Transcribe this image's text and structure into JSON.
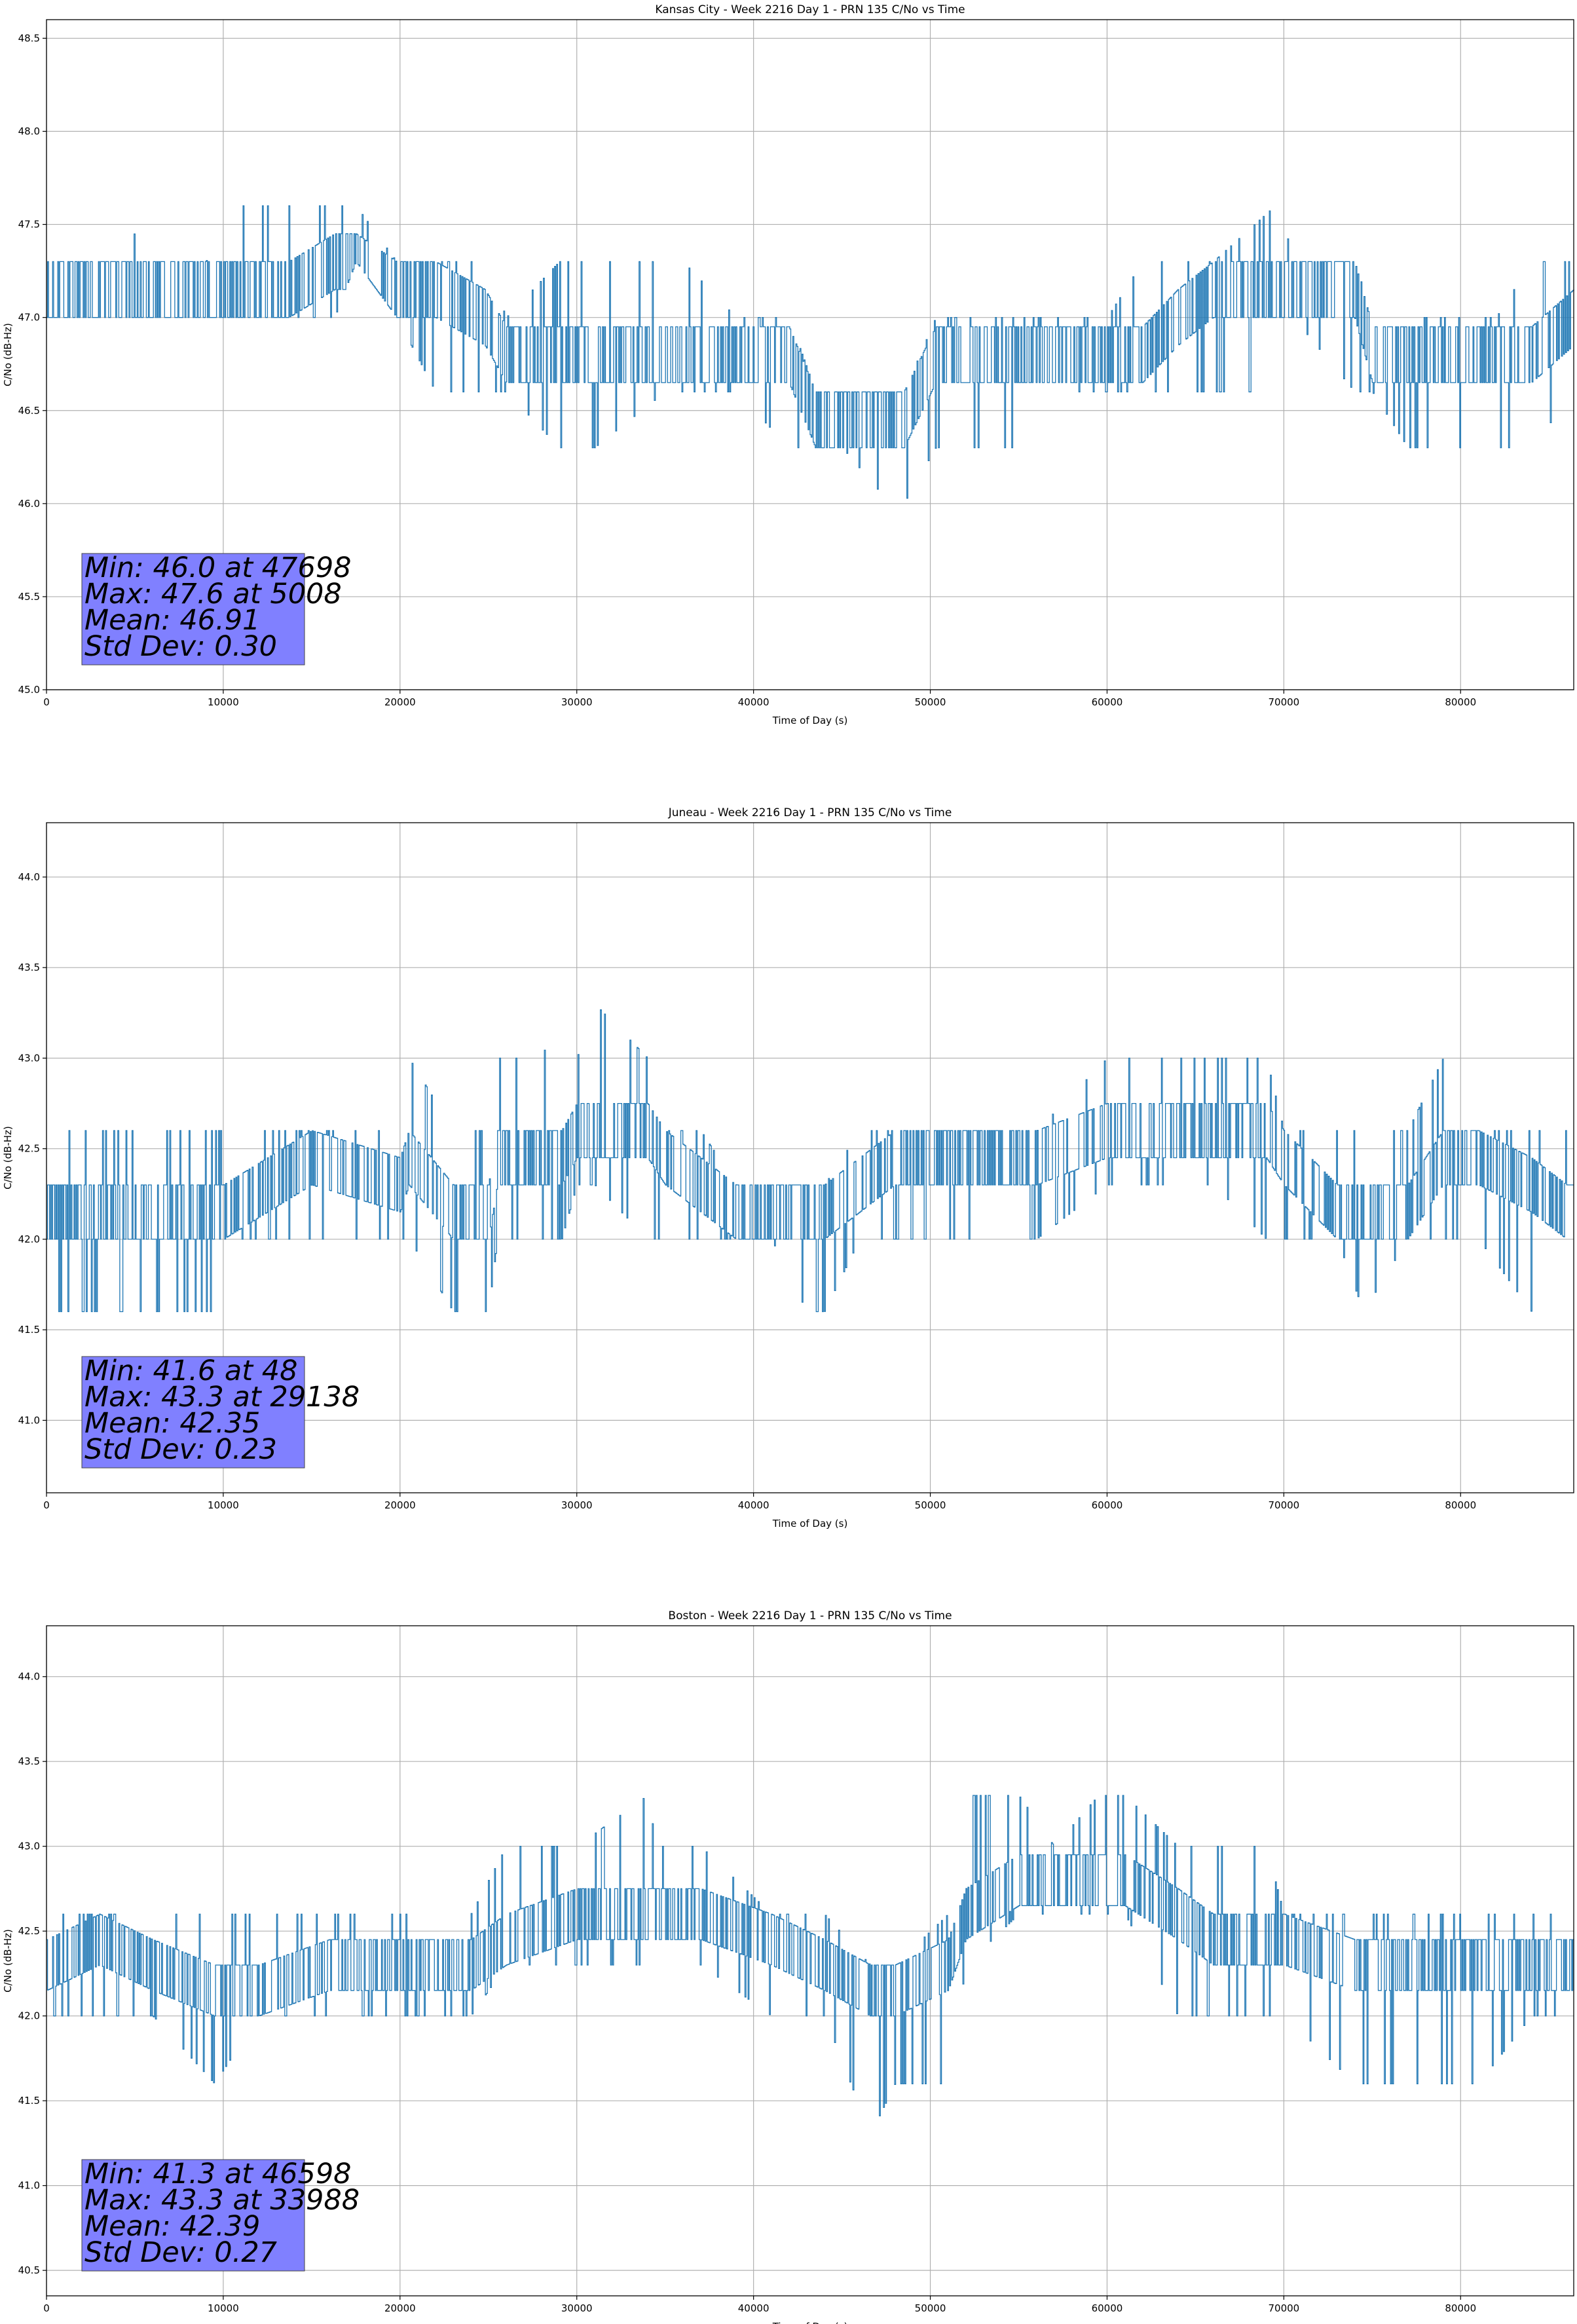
{
  "colors": {
    "line": "#1f77b4",
    "grid": "#b0b0b0",
    "stats_box": "#8080ff",
    "stats_edge": "#444444"
  },
  "chart_data": [
    {
      "type": "line",
      "title": "Kansas City - Week 2216 Day 1 - PRN 135 C/No vs Time",
      "xlabel": "Time of Day (s)",
      "ylabel": "C/No (dB-Hz)",
      "xlim": [
        0,
        86400
      ],
      "ylim": [
        45.0,
        48.6
      ],
      "xticks": [
        "0",
        "10000",
        "20000",
        "30000",
        "40000",
        "50000",
        "60000",
        "70000",
        "80000"
      ],
      "yticks": [
        "45.0",
        "45.5",
        "46.0",
        "46.5",
        "47.0",
        "47.5",
        "48.0",
        "48.5"
      ],
      "grid": true,
      "stats": [
        "Min: 46.0 at 47698",
        "Max: 47.6 at 5008",
        "Mean: 46.91",
        "Std Dev: 0.30"
      ],
      "series": [
        {
          "x": [
            0,
            4900,
            5008,
            5100,
            9000,
            11000,
            13700,
            16300,
            17500,
            19800,
            22000,
            24800,
            26000,
            29000,
            31000,
            35000,
            36000,
            39000,
            42000,
            43500,
            45000,
            47698,
            48500,
            50300,
            51000,
            55000,
            58000,
            60000,
            62000,
            64000,
            66000,
            69500,
            69800,
            70500,
            74000,
            75000,
            77000,
            78000,
            80000,
            82000,
            84000,
            86400
          ],
          "base": [
            47.15,
            47.15,
            47.15,
            47.15,
            47.15,
            47.15,
            47.15,
            47.3,
            47.3,
            47.15,
            47.15,
            47.0,
            46.8,
            46.8,
            46.8,
            46.8,
            46.8,
            46.8,
            46.8,
            46.45,
            46.45,
            46.45,
            46.45,
            46.8,
            46.8,
            46.8,
            46.8,
            46.8,
            46.8,
            47.0,
            47.15,
            47.15,
            47.15,
            47.15,
            47.15,
            46.8,
            46.8,
            46.8,
            46.8,
            46.8,
            46.8,
            47.0
          ],
          "low": [
            47.0,
            47.0,
            47.0,
            47.0,
            47.0,
            47.0,
            47.0,
            47.0,
            47.3,
            47.0,
            46.6,
            46.6,
            46.6,
            46.3,
            46.3,
            46.6,
            46.6,
            46.6,
            46.3,
            46.3,
            46.3,
            46.0,
            46.0,
            46.3,
            46.3,
            46.3,
            46.6,
            46.6,
            46.6,
            46.6,
            46.6,
            46.6,
            47.0,
            47.0,
            46.6,
            46.6,
            46.3,
            46.3,
            46.3,
            46.3,
            46.3,
            46.6
          ],
          "high": [
            47.3,
            47.3,
            47.6,
            47.3,
            47.3,
            47.6,
            47.6,
            47.6,
            47.6,
            47.3,
            47.3,
            47.3,
            47.0,
            47.3,
            47.3,
            47.3,
            47.3,
            47.0,
            47.0,
            46.6,
            46.6,
            46.6,
            46.6,
            47.0,
            47.0,
            47.0,
            47.0,
            47.0,
            47.3,
            47.3,
            47.3,
            47.6,
            47.6,
            47.3,
            47.3,
            47.0,
            47.0,
            47.0,
            47.0,
            47.0,
            47.3,
            47.3
          ]
        }
      ]
    },
    {
      "type": "line",
      "title": "Juneau - Week 2216 Day 1 - PRN 135 C/No vs Time",
      "xlabel": "Time of Day (s)",
      "ylabel": "C/No (dB-Hz)",
      "xlim": [
        0,
        86400
      ],
      "ylim": [
        40.6,
        44.3
      ],
      "xticks": [
        "0",
        "10000",
        "20000",
        "30000",
        "40000",
        "50000",
        "60000",
        "70000",
        "80000"
      ],
      "yticks": [
        "41.0",
        "41.5",
        "42.0",
        "42.5",
        "43.0",
        "43.5",
        "44.0"
      ],
      "grid": true,
      "stats": [
        "Min: 41.6 at 48",
        "Max: 43.3 at 29138",
        "Mean: 42.35",
        "Std Dev: 0.23"
      ],
      "series": [
        {
          "x": [
            0,
            48,
            2000,
            5000,
            9500,
            10000,
            15000,
            20000,
            20500,
            23000,
            25000,
            25500,
            28000,
            29138,
            30000,
            31000,
            34000,
            35000,
            37000,
            39000,
            41000,
            43000,
            44000,
            46000,
            48000,
            52000,
            56000,
            60000,
            62000,
            66000,
            69000,
            70000,
            73000,
            74500,
            77000,
            79000,
            81000,
            84000,
            86000,
            86400
          ],
          "base": [
            42.15,
            42.15,
            42.15,
            42.15,
            42.15,
            42.15,
            42.45,
            42.3,
            42.45,
            42.15,
            42.15,
            42.45,
            42.45,
            42.45,
            42.6,
            42.6,
            42.6,
            42.45,
            42.3,
            42.15,
            42.15,
            42.15,
            42.15,
            42.3,
            42.45,
            42.45,
            42.45,
            42.6,
            42.6,
            42.6,
            42.6,
            42.45,
            42.15,
            42.15,
            42.15,
            42.45,
            42.45,
            42.3,
            42.15,
            42.15
          ],
          "low": [
            41.6,
            41.6,
            41.6,
            41.6,
            41.6,
            42.0,
            42.0,
            42.0,
            42.0,
            41.6,
            41.6,
            42.0,
            42.0,
            42.0,
            42.3,
            42.3,
            42.0,
            42.0,
            42.0,
            42.0,
            42.0,
            41.6,
            41.6,
            42.0,
            42.0,
            42.0,
            42.0,
            42.3,
            42.3,
            42.3,
            42.0,
            42.0,
            42.0,
            41.6,
            42.0,
            42.0,
            42.0,
            41.6,
            41.6,
            42.0
          ],
          "high": [
            42.6,
            42.6,
            42.6,
            42.6,
            42.6,
            42.6,
            42.6,
            42.6,
            43.0,
            42.6,
            42.6,
            43.0,
            43.0,
            43.3,
            43.0,
            43.3,
            43.0,
            42.6,
            42.6,
            42.3,
            42.3,
            42.3,
            42.3,
            42.6,
            42.6,
            42.6,
            42.6,
            43.0,
            43.0,
            43.0,
            43.0,
            42.6,
            42.6,
            42.6,
            42.6,
            43.0,
            42.6,
            42.6,
            42.6,
            42.6
          ]
        }
      ]
    },
    {
      "type": "line",
      "title": "Boston - Week 2216 Day 1 - PRN 135 C/No vs Time",
      "xlabel": "Time of Day (s)",
      "ylabel": "C/No (dB-Hz)",
      "xlim": [
        0,
        86400
      ],
      "ylim": [
        40.35,
        44.3
      ],
      "xticks": [
        "0",
        "10000",
        "20000",
        "30000",
        "40000",
        "50000",
        "60000",
        "70000",
        "80000"
      ],
      "yticks": [
        "40.5",
        "41.0",
        "41.5",
        "42.0",
        "42.5",
        "43.0",
        "43.5",
        "44.0"
      ],
      "grid": true,
      "stats": [
        "Min: 41.3 at 46598",
        "Max: 43.3 at 33988",
        "Mean: 42.39",
        "Std Dev: 0.27"
      ],
      "series": [
        {
          "x": [
            0,
            3000,
            6000,
            9500,
            12000,
            16000,
            20000,
            24000,
            26000,
            30000,
            33988,
            34500,
            37000,
            41000,
            44000,
            46598,
            48000,
            51000,
            52000,
            55000,
            57000,
            59500,
            61000,
            64000,
            66000,
            69000,
            70000,
            74000,
            78000,
            81000,
            84000,
            86400
          ],
          "base": [
            42.3,
            42.45,
            42.3,
            42.15,
            42.15,
            42.3,
            42.3,
            42.3,
            42.45,
            42.6,
            42.6,
            42.6,
            42.6,
            42.45,
            42.3,
            42.15,
            42.15,
            42.3,
            42.6,
            42.8,
            42.8,
            42.8,
            42.8,
            42.6,
            42.45,
            42.45,
            42.45,
            42.3,
            42.3,
            42.3,
            42.3,
            42.3
          ],
          "low": [
            42.0,
            42.0,
            42.0,
            41.6,
            42.0,
            42.0,
            42.0,
            42.0,
            42.3,
            42.3,
            42.3,
            42.3,
            42.3,
            42.0,
            42.0,
            41.3,
            41.6,
            41.6,
            42.3,
            42.6,
            42.6,
            42.6,
            42.6,
            42.0,
            42.0,
            42.0,
            42.0,
            41.6,
            41.6,
            41.6,
            42.0,
            42.0
          ],
          "high": [
            42.6,
            42.6,
            42.6,
            42.6,
            42.6,
            42.6,
            42.6,
            42.6,
            43.0,
            43.0,
            43.3,
            43.0,
            43.0,
            42.6,
            42.6,
            42.3,
            42.3,
            42.6,
            43.3,
            43.3,
            43.0,
            43.3,
            43.3,
            43.0,
            43.0,
            43.0,
            42.6,
            42.6,
            42.6,
            42.6,
            42.6,
            42.6
          ]
        }
      ]
    }
  ]
}
